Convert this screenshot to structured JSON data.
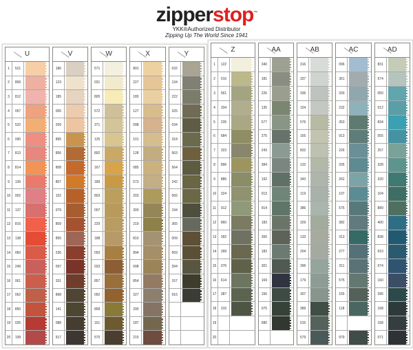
{
  "brand": {
    "logo_a": "zipper",
    "logo_b": "stop",
    "tm": "™",
    "line1": "YKK®Authorized Distributor",
    "line2": "Zipping Up The World Since 1941"
  },
  "row_numbers": [
    "1",
    "2",
    "3",
    "4",
    "5",
    "6",
    "7",
    "8",
    "9",
    "10",
    "11",
    "12",
    "13",
    "14",
    "15",
    "16",
    "17",
    "18",
    "19",
    "20"
  ],
  "panels": [
    {
      "columns": [
        {
          "header": "U",
          "codes": [
            "521",
            "806",
            "812",
            "057",
            "522",
            "090",
            "813",
            "814",
            "136",
            "002",
            "137",
            "816",
            "138",
            "060",
            "249",
            "061",
            "062",
            "850",
            "025",
            "199"
          ],
          "colors": [
            "#f6cfa6",
            "#eeb0a0",
            "#f0b3ae",
            "#eea27f",
            "#f3ae73",
            "#ee8f82",
            "#e8877d",
            "#f29457",
            "#e97a6c",
            "#e07f84",
            "#d8706e",
            "#f0604a",
            "#e44c36",
            "#d85c48",
            "#c9605a",
            "#cc5e4c",
            "#c06048",
            "#c3533c",
            "#b73a34",
            "#b34a4a"
          ]
        },
        {
          "header": "V",
          "codes": [
            "186",
            "123",
            "185",
            "005",
            "209",
            "895",
            "856",
            "808",
            "807",
            "102",
            "079",
            "809",
            "855",
            "236",
            "097",
            "331",
            "868",
            "141",
            "088",
            "917"
          ],
          "colors": [
            "#d9cfc2",
            "#efe2cc",
            "#e6d4c0",
            "#ecccad",
            "#eec5a0",
            "#c9954e",
            "#b26b35",
            "#c56a2d",
            "#d17a2a",
            "#b8602a",
            "#a65e30",
            "#a4522f",
            "#9d6656",
            "#8a3e2c",
            "#7a3328",
            "#6e3d2c",
            "#4f4532",
            "#4c4733",
            "#453d30",
            "#3d3631"
          ]
        },
        {
          "header": "W",
          "codes": [
            "571",
            "031",
            "805",
            "572",
            "371",
            "125",
            "892",
            "167",
            "189",
            "803",
            "007",
            "229",
            "188",
            "093",
            "033",
            "857",
            "092",
            "858",
            "161",
            "570"
          ],
          "colors": [
            "#f4f0e0",
            "#f2eacc",
            "#f7ecb8",
            "#cfc09a",
            "#d4c498",
            "#d9c58f",
            "#c9a965",
            "#d7a44c",
            "#c89a45",
            "#bd9f5d",
            "#b89b5c",
            "#b89c62",
            "#b79a68",
            "#a87f42",
            "#8d5e35",
            "#9a6f3a",
            "#92622f",
            "#8a7a38",
            "#6e5a30",
            "#4a3e31"
          ]
        },
        {
          "header": "X",
          "codes": [
            "891",
            "227",
            "180",
            "127",
            "098",
            "101",
            "128",
            "085",
            "573",
            "203",
            "300",
            "219",
            "810",
            "894",
            "008",
            "854",
            "327",
            "290",
            "187",
            "215"
          ],
          "colors": [
            "#ecd2a0",
            "#e6c596",
            "#e9cfa2",
            "#d9bc8b",
            "#d7b28e",
            "#d6bd8e",
            "#c3ad80",
            "#cbb17d",
            "#c4ae85",
            "#ad9a5d",
            "#968558",
            "#8e8049",
            "#a49373",
            "#a58f68",
            "#9a8458",
            "#937a62",
            "#8d7f6e",
            "#857464",
            "#73674e",
            "#6e4c40"
          ]
        },
        {
          "header": "Y",
          "codes": [
            "032",
            "134",
            "222",
            "325",
            "034",
            "318",
            "563",
            "564",
            "242",
            "565",
            "194",
            "365",
            "009",
            "569",
            "394",
            "157",
            "916",
            "",
            "",
            ""
          ],
          "colors": [
            "#a9a493",
            "#808074",
            "#7c7c6b",
            "#706b55",
            "#5f5c46",
            "#6c6a4d",
            "#6e603f",
            "#5d5b40",
            "#6a6542",
            "#6b6847",
            "#4e4f3d",
            "#666a5e",
            "#5e5036",
            "#5a5038",
            "#585640",
            "#3e3c2c",
            "#3b3d34",
            "",
            "",
            ""
          ]
        }
      ]
    },
    {
      "columns": [
        {
          "header": "Z",
          "codes": [
            "122",
            "010",
            "561",
            "334",
            "235",
            "684",
            "323",
            "896",
            "886",
            "324",
            "912",
            "860",
            "392",
            "399",
            "076",
            "614",
            "387",
            "315",
            "",
            ""
          ],
          "colors": [
            "#f2f0dc",
            "#bcb88a",
            "#a4a57f",
            "#b1ae8e",
            "#aaa784",
            "#8f8d64",
            "#88876d",
            "#9c9560",
            "#8a8d65",
            "#8f936e",
            "#8e9a78",
            "#7b7b62",
            "#6f7261",
            "#6a6950",
            "#5f6149",
            "#6b7560",
            "#5c6450",
            "#4e5545",
            "",
            ""
          ]
        },
        {
          "header": "AA",
          "codes": [
            "340",
            "181",
            "226",
            "135",
            "577",
            "275",
            "243",
            "384",
            "192",
            "013",
            "914",
            "183",
            "306",
            "182",
            "301",
            "169",
            "156",
            "075",
            "580",
            ""
          ],
          "colors": [
            "#9ea192",
            "#898e80",
            "#9a9e8e",
            "#7b8670",
            "#899585",
            "#67736a",
            "#8b9b94",
            "#7b8680",
            "#5f7067",
            "#6f8577",
            "#5e7567",
            "#6b7468",
            "#5e6358",
            "#6c7b72",
            "#505a52",
            "#2f3440",
            "#3e4a44",
            "#364238",
            "#313830",
            ""
          ]
        },
        {
          "header": "AB",
          "codes": [
            "316",
            "337",
            "336",
            "154",
            "576",
            "165",
            "832",
            "132",
            "343",
            "119",
            "386",
            "329",
            "133",
            "204",
            "396",
            "179",
            "307",
            "389",
            "015",
            "579"
          ],
          "colors": [
            "#d8dcd8",
            "#d0d4d0",
            "#bfc3bf",
            "#c5c7c3",
            "#b8bba3",
            "#c2c4b0",
            "#bcc1b1",
            "#b3b8a8",
            "#aeb6ac",
            "#a9b1ab",
            "#a9b5ad",
            "#a2ab9c",
            "#a7ab9f",
            "#a4aaa0",
            "#95a59d",
            "#8d9d95",
            "#86968e",
            "#404e45",
            "#55625c",
            "#4a5a58"
          ]
        },
        {
          "header": "AC",
          "codes": [
            "096",
            "361",
            "330",
            "232",
            "353",
            "913",
            "226",
            "205",
            "262",
            "107",
            "575",
            "382",
            "313",
            "277",
            "311",
            "575",
            "155",
            "118",
            "",
            "979"
          ],
          "colors": [
            "#a4bcd0",
            "#a2acae",
            "#8fa7ad",
            "#8eb1bb",
            "#5f7a70",
            "#5f7d78",
            "#6a8f95",
            "#5e8a91",
            "#7ba4a8",
            "#5b8c93",
            "#58797a",
            "#607a7e",
            "#356a66",
            "#547078",
            "#5a7276",
            "#627870",
            "#54605a",
            "#4a6660",
            "",
            "#3f4c47"
          ]
        },
        {
          "header": "AD",
          "codes": [
            "831",
            "574",
            "050",
            "012",
            "834",
            "555",
            "257",
            "328",
            "320",
            "104",
            "889",
            "400",
            "838",
            "910",
            "074",
            "160",
            "395",
            "168",
            "158",
            "071"
          ],
          "colors": [
            "#c4ccb8",
            "#b6c4c0",
            "#5fa6ae",
            "#5a9ea8",
            "#3ba0b2",
            "#4592a2",
            "#7aa298",
            "#5d948e",
            "#3e7a72",
            "#3e6e64",
            "#4f7060",
            "#2e6e84",
            "#205a72",
            "#2a5a70",
            "#2f5470",
            "#3c4e66",
            "#2c4a4c",
            "#2c3a3a",
            "#343e40",
            "#2e3234"
          ]
        }
      ]
    }
  ]
}
